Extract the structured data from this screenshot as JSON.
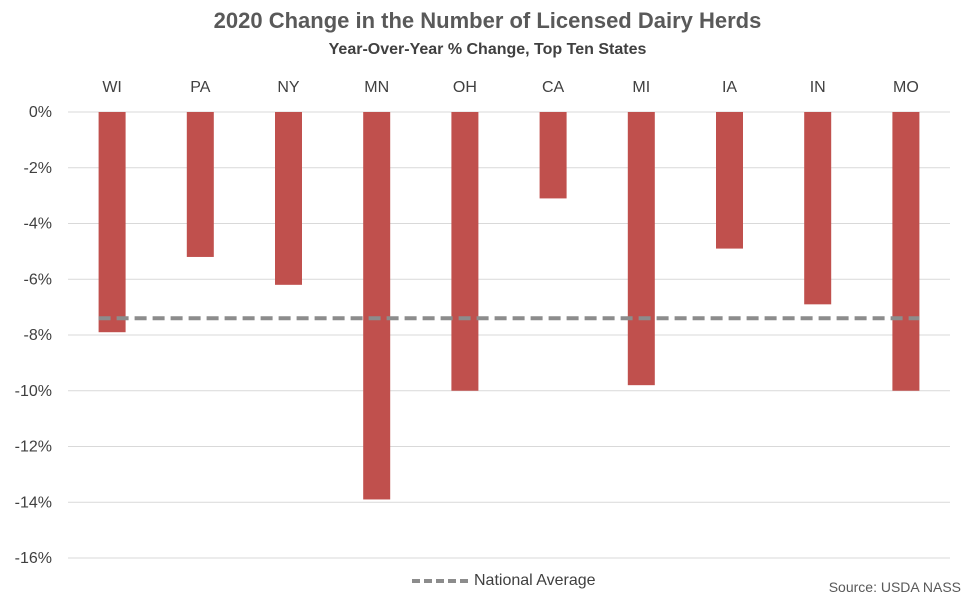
{
  "chart_data": {
    "type": "bar",
    "title": "2020 Change in the Number of Licensed Dairy Herds",
    "subtitle": "Year-Over-Year % Change, Top Ten States",
    "categories": [
      "WI",
      "PA",
      "NY",
      "MN",
      "OH",
      "CA",
      "MI",
      "IA",
      "IN",
      "MO"
    ],
    "series": [
      {
        "values": [
          -7.9,
          -5.2,
          -6.2,
          -13.9,
          -10.0,
          -3.1,
          -9.8,
          -4.9,
          -6.9,
          -10.0
        ],
        "color": "#c0504d"
      }
    ],
    "reference_line": {
      "name": "National Average",
      "value": -7.4,
      "style": "dashed",
      "color": "#8c8c8c"
    },
    "ylim": [
      -16,
      0
    ],
    "yticks": [
      0,
      -2,
      -4,
      -6,
      -8,
      -10,
      -12,
      -14,
      -16
    ],
    "ytick_labels": [
      "0%",
      "-2%",
      "-4%",
      "-6%",
      "-8%",
      "-10%",
      "-12%",
      "-14%",
      "-16%"
    ],
    "category_axis_position": "top",
    "grid": true,
    "legend_position": "bottom",
    "source": "Source: USDA NASS"
  }
}
